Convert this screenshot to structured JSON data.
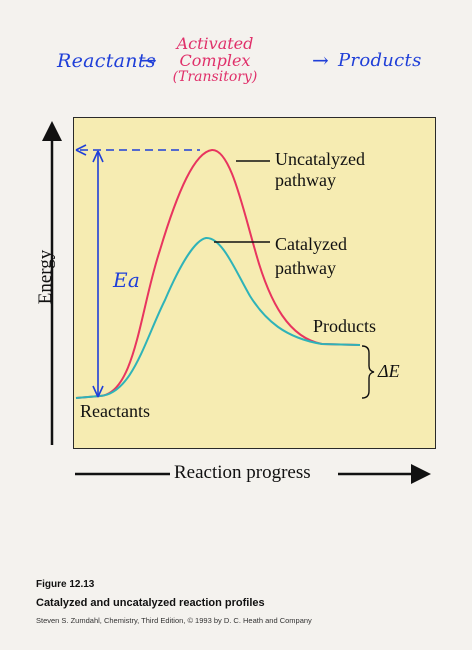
{
  "handwritten": {
    "reactants": "Reactants",
    "arrow1": "→",
    "activated_line1": "Activated",
    "activated_line2": "Complex",
    "activated_line3": "(Transitory)",
    "arrow2": "→",
    "products": "Products"
  },
  "diagram": {
    "y_axis_label": "Energy",
    "x_axis_label": "Reaction progress",
    "uncatalyzed_label_line1": "Uncatalyzed",
    "uncatalyzed_label_line2": "pathway",
    "catalyzed_label_line1": "Catalyzed",
    "catalyzed_label_line2": "pathway",
    "products_label": "Products",
    "reactants_label": "Reactants",
    "delta_e_label": "ΔE",
    "ea_label": "Ea",
    "colors": {
      "uncatalyzed": "#e8355f",
      "catalyzed": "#2fb3b8",
      "annotation": "#1f3fd8",
      "panel": "#f6ecb2"
    }
  },
  "caption": {
    "figure_number": "Figure 12.13",
    "title": "Catalyzed and uncatalyzed reaction profiles",
    "citation": "Steven S. Zumdahl, Chemistry, Third Edition, © 1993 by D. C. Heath and Company"
  }
}
